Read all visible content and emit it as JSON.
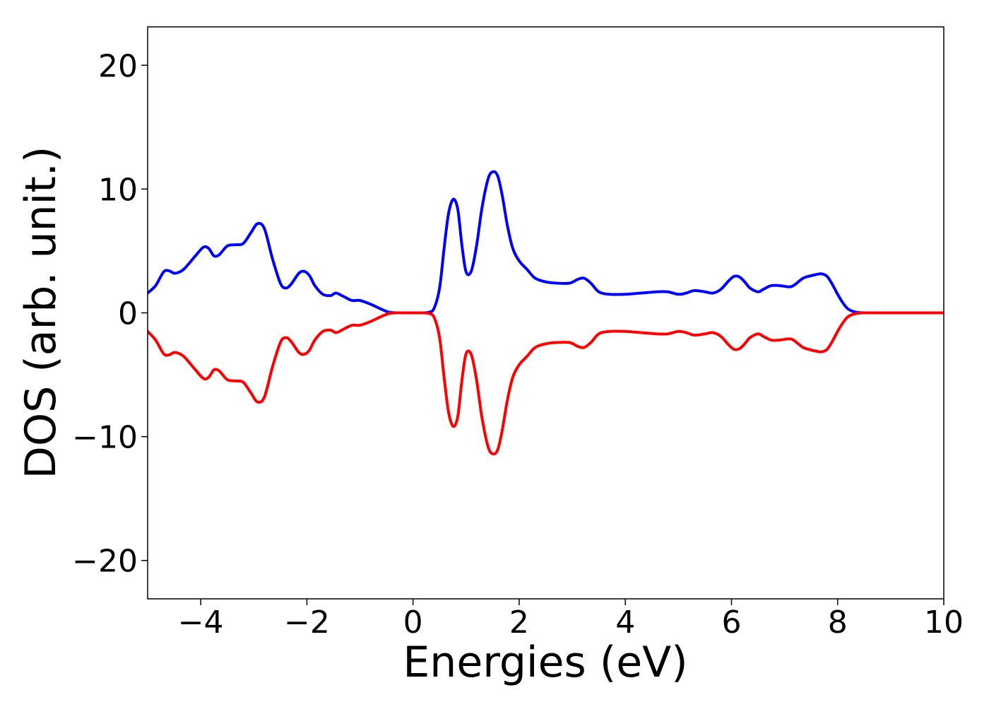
{
  "chart_data": {
    "type": "line",
    "title": "",
    "xlabel": "Energies (eV)",
    "ylabel": "DOS (arb. unit.)",
    "xlim": [
      -5,
      10
    ],
    "ylim": [
      -23.1,
      23.1
    ],
    "grid": false,
    "legend": "none",
    "x_ticks": [
      -4,
      -2,
      0,
      2,
      4,
      6,
      8,
      10
    ],
    "x_tick_labels": [
      "−4",
      "−2",
      "0",
      "2",
      "4",
      "6",
      "8",
      "10"
    ],
    "y_ticks": [
      -20,
      -10,
      0,
      10,
      20
    ],
    "y_tick_labels": [
      "−20",
      "−10",
      "0",
      "10",
      "20"
    ],
    "x": [
      -5.0,
      -4.85,
      -4.7,
      -4.6,
      -4.5,
      -4.4,
      -4.3,
      -4.1,
      -3.95,
      -3.85,
      -3.75,
      -3.65,
      -3.5,
      -3.35,
      -3.2,
      -3.05,
      -2.93,
      -2.8,
      -2.65,
      -2.5,
      -2.4,
      -2.3,
      -2.15,
      -2.05,
      -1.95,
      -1.85,
      -1.7,
      -1.55,
      -1.45,
      -1.3,
      -1.15,
      -1.0,
      -0.8,
      -0.6,
      -0.45,
      -0.3,
      -0.1,
      0.1,
      0.3,
      0.4,
      0.5,
      0.58,
      0.66,
      0.73,
      0.79,
      0.85,
      0.92,
      1.0,
      1.1,
      1.2,
      1.3,
      1.42,
      1.52,
      1.6,
      1.68,
      1.78,
      1.88,
      2.0,
      2.15,
      2.3,
      2.5,
      2.7,
      2.95,
      3.1,
      3.22,
      3.35,
      3.5,
      3.7,
      4.0,
      4.3,
      4.6,
      4.8,
      5.0,
      5.15,
      5.3,
      5.5,
      5.65,
      5.8,
      5.95,
      6.05,
      6.15,
      6.25,
      6.35,
      6.5,
      6.6,
      6.75,
      6.9,
      7.1,
      7.2,
      7.35,
      7.5,
      7.6,
      7.7,
      7.8,
      7.9,
      8.0,
      8.1,
      8.2,
      8.35,
      8.5,
      8.7,
      9.0,
      9.5,
      10.0
    ],
    "series": [
      {
        "color": "#0000ff",
        "values": [
          1.6,
          2.2,
          3.3,
          3.4,
          3.2,
          3.3,
          3.6,
          4.6,
          5.3,
          5.2,
          4.6,
          4.7,
          5.4,
          5.5,
          5.6,
          6.5,
          7.2,
          6.8,
          4.4,
          2.4,
          2.0,
          2.3,
          3.2,
          3.35,
          3.0,
          2.2,
          1.5,
          1.4,
          1.6,
          1.3,
          1.0,
          1.0,
          0.7,
          0.3,
          0.05,
          0.0,
          0.0,
          0.0,
          0.05,
          0.4,
          2.0,
          5.0,
          7.8,
          9.0,
          9.1,
          8.2,
          5.5,
          3.3,
          3.4,
          5.5,
          8.5,
          10.9,
          11.4,
          11.0,
          9.5,
          7.0,
          5.2,
          4.2,
          3.5,
          2.8,
          2.5,
          2.4,
          2.4,
          2.7,
          2.8,
          2.4,
          1.7,
          1.5,
          1.5,
          1.6,
          1.7,
          1.7,
          1.5,
          1.6,
          1.8,
          1.7,
          1.6,
          1.9,
          2.6,
          2.95,
          2.9,
          2.5,
          2.0,
          1.7,
          1.9,
          2.2,
          2.2,
          2.1,
          2.3,
          2.8,
          3.0,
          3.1,
          3.15,
          2.95,
          2.3,
          1.5,
          0.8,
          0.3,
          0.05,
          0.0,
          0.0,
          0.0,
          0.0,
          0.0
        ]
      },
      {
        "color": "#ff0000",
        "values": [
          -1.5,
          -2.2,
          -3.3,
          -3.4,
          -3.2,
          -3.3,
          -3.6,
          -4.6,
          -5.3,
          -5.2,
          -4.6,
          -4.7,
          -5.4,
          -5.5,
          -5.6,
          -6.5,
          -7.2,
          -6.8,
          -4.4,
          -2.4,
          -2.0,
          -2.3,
          -3.2,
          -3.35,
          -3.0,
          -2.2,
          -1.5,
          -1.4,
          -1.6,
          -1.3,
          -1.0,
          -1.0,
          -0.7,
          -0.3,
          -0.05,
          0.0,
          0.0,
          0.0,
          -0.05,
          -0.4,
          -2.0,
          -5.0,
          -7.8,
          -9.0,
          -9.1,
          -8.2,
          -5.5,
          -3.3,
          -3.4,
          -5.5,
          -8.5,
          -10.9,
          -11.4,
          -11.0,
          -9.5,
          -7.0,
          -5.2,
          -4.2,
          -3.5,
          -2.8,
          -2.5,
          -2.4,
          -2.4,
          -2.7,
          -2.8,
          -2.4,
          -1.7,
          -1.5,
          -1.5,
          -1.6,
          -1.7,
          -1.7,
          -1.5,
          -1.6,
          -1.8,
          -1.7,
          -1.6,
          -1.9,
          -2.6,
          -2.95,
          -2.9,
          -2.5,
          -2.0,
          -1.7,
          -1.9,
          -2.2,
          -2.2,
          -2.1,
          -2.3,
          -2.8,
          -3.0,
          -3.1,
          -3.15,
          -2.95,
          -2.3,
          -1.5,
          -0.8,
          -0.3,
          -0.05,
          0.0,
          0.0,
          0.0,
          0.0,
          0.0
        ]
      }
    ]
  }
}
